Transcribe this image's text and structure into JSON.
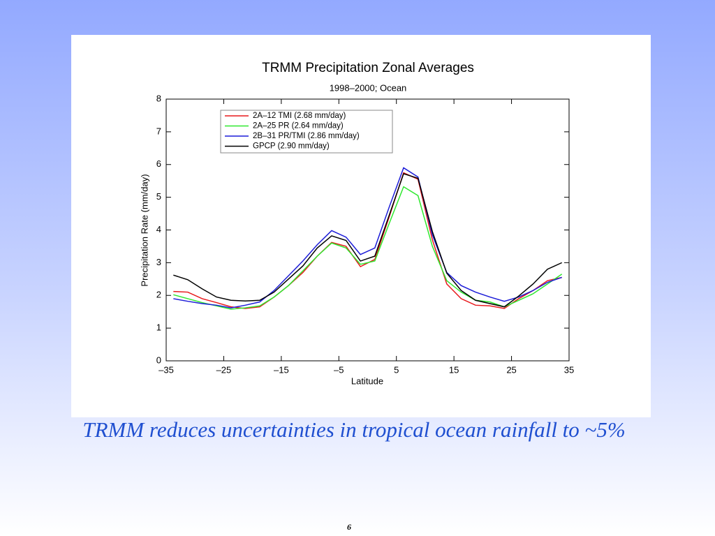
{
  "chart_data": {
    "type": "line",
    "title": "TRMM Precipitation Zonal Averages",
    "subtitle": "1998–2000; Ocean",
    "x_label": "Latitude",
    "y_label": "Precipitation Rate (mm/day)",
    "x": [
      -33.75,
      -31.25,
      -28.75,
      -26.25,
      -23.75,
      -21.25,
      -18.75,
      -16.25,
      -13.75,
      -11.25,
      -8.75,
      -6.25,
      -3.75,
      -1.25,
      1.25,
      3.75,
      6.25,
      8.75,
      11.25,
      13.75,
      16.25,
      18.75,
      21.25,
      23.75,
      26.25,
      28.75,
      31.25,
      33.75
    ],
    "series": [
      {
        "name": "2A–12 TMI (2.68 mm/day)",
        "color": "#e8191c",
        "values": [
          2.12,
          2.1,
          1.9,
          1.78,
          1.65,
          1.6,
          1.65,
          1.95,
          2.3,
          2.7,
          3.2,
          3.62,
          3.5,
          2.88,
          3.1,
          4.4,
          5.75,
          5.55,
          3.7,
          2.35,
          1.9,
          1.7,
          1.68,
          1.6,
          1.9,
          2.15,
          2.45,
          2.55
        ]
      },
      {
        "name": "2A–25 PR (2.64 mm/day)",
        "color": "#2fe82f",
        "values": [
          2.02,
          1.9,
          1.78,
          1.68,
          1.58,
          1.62,
          1.68,
          1.95,
          2.3,
          2.75,
          3.2,
          3.6,
          3.45,
          2.95,
          3.05,
          4.2,
          5.32,
          5.05,
          3.5,
          2.45,
          2.1,
          1.85,
          1.8,
          1.65,
          1.85,
          2.05,
          2.35,
          2.65
        ]
      },
      {
        "name": "2B–31 PR/TMI (2.86 mm/day)",
        "color": "#1c1cd8",
        "values": [
          1.9,
          1.82,
          1.75,
          1.7,
          1.62,
          1.7,
          1.8,
          2.15,
          2.6,
          3.05,
          3.55,
          3.98,
          3.78,
          3.25,
          3.45,
          4.7,
          5.9,
          5.62,
          3.85,
          2.7,
          2.3,
          2.1,
          1.95,
          1.82,
          1.95,
          2.15,
          2.4,
          2.55
        ]
      },
      {
        "name": "GPCP (2.90 mm/day)",
        "color": "#000000",
        "values": [
          2.62,
          2.48,
          2.2,
          1.95,
          1.85,
          1.83,
          1.85,
          2.1,
          2.5,
          2.9,
          3.45,
          3.82,
          3.68,
          3.05,
          3.2,
          4.45,
          5.72,
          5.58,
          3.95,
          2.68,
          2.15,
          1.85,
          1.75,
          1.65,
          1.98,
          2.35,
          2.8,
          3.0
        ]
      }
    ],
    "xlim": [
      -35,
      35
    ],
    "xticks": [
      {
        "value": -35,
        "label": "–35"
      },
      {
        "value": -25,
        "label": "–25"
      },
      {
        "value": -15,
        "label": "–15"
      },
      {
        "value": -5,
        "label": "–5"
      },
      5,
      15,
      25,
      35
    ],
    "ylim": [
      0,
      8
    ],
    "yticks": [
      0,
      1,
      2,
      3,
      4,
      5,
      6,
      7,
      8
    ],
    "legend": "upper left"
  },
  "caption": "TRMM reduces uncertainties in tropical ocean rainfall to ~5%",
  "page_number": "6"
}
